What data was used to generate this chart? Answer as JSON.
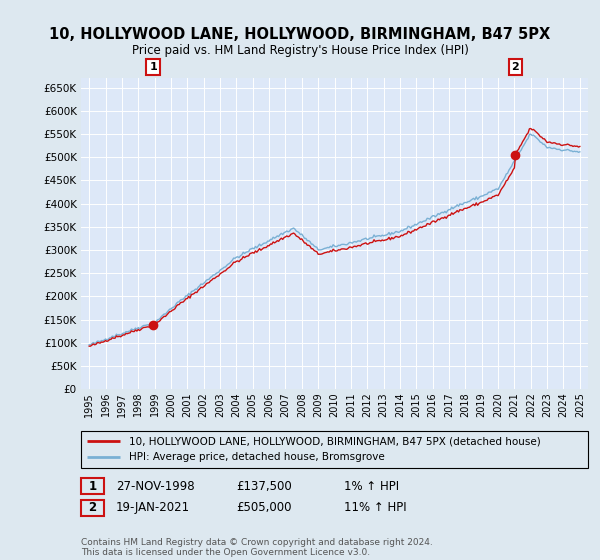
{
  "title": "10, HOLLYWOOD LANE, HOLLYWOOD, BIRMINGHAM, B47 5PX",
  "subtitle": "Price paid vs. HM Land Registry's House Price Index (HPI)",
  "ylim": [
    0,
    670000
  ],
  "yticks": [
    0,
    50000,
    100000,
    150000,
    200000,
    250000,
    300000,
    350000,
    400000,
    450000,
    500000,
    550000,
    600000,
    650000
  ],
  "xlim_start": 1994.5,
  "xlim_end": 2025.5,
  "fig_bg_color": "#dde8f0",
  "plot_bg_color": "#dde8f8",
  "grid_color": "#ffffff",
  "sale1_x": 1998.91,
  "sale1_y": 137500,
  "sale2_x": 2021.05,
  "sale2_y": 505000,
  "hpi_color": "#7ab0d4",
  "price_color": "#cc1111",
  "legend_house": "10, HOLLYWOOD LANE, HOLLYWOOD, BIRMINGHAM, B47 5PX (detached house)",
  "legend_hpi": "HPI: Average price, detached house, Bromsgrove",
  "annotation1_date": "27-NOV-1998",
  "annotation1_price": "£137,500",
  "annotation1_hpi": "1% ↑ HPI",
  "annotation2_date": "19-JAN-2021",
  "annotation2_price": "£505,000",
  "annotation2_hpi": "11% ↑ HPI",
  "footer": "Contains HM Land Registry data © Crown copyright and database right 2024.\nThis data is licensed under the Open Government Licence v3.0."
}
